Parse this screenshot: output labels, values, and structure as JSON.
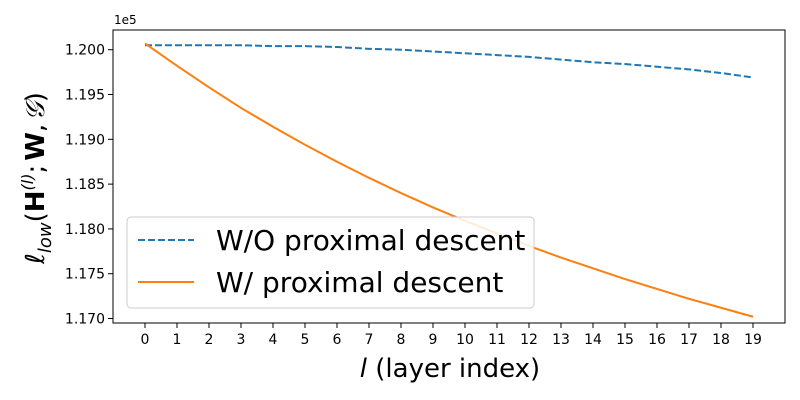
{
  "chart_data": {
    "type": "line",
    "x": [
      0,
      1,
      2,
      3,
      4,
      5,
      6,
      7,
      8,
      9,
      10,
      11,
      12,
      13,
      14,
      15,
      16,
      17,
      18,
      19
    ],
    "x_ticks": [
      "0",
      "1",
      "2",
      "3",
      "4",
      "5",
      "6",
      "7",
      "8",
      "9",
      "10",
      "11",
      "12",
      "13",
      "14",
      "15",
      "16",
      "17",
      "18",
      "19"
    ],
    "y_ticks": [
      "1.170",
      "1.175",
      "1.180",
      "1.185",
      "1.190",
      "1.195",
      "1.200"
    ],
    "y_tick_values": [
      1.17,
      1.175,
      1.18,
      1.185,
      1.19,
      1.195,
      1.2
    ],
    "y_offset_text": "1e5",
    "ylim": [
      1.1695,
      1.2022
    ],
    "xlim": [
      -1.0,
      20.0
    ],
    "xlabel_var": "l",
    "xlabel_rest": " (layer index)",
    "ylabel_parts": {
      "ell": "ℓ",
      "sub": "low",
      "open": "(",
      "H": "H",
      "sup": "(l)",
      "semi": ";",
      "W": "W",
      "comma": ",",
      "G": "𝒢",
      "close": ")"
    },
    "grid": false,
    "legend_position": "lower-left",
    "series": [
      {
        "name": "W/O proximal descent",
        "color": "#1f77b4",
        "style": "dashed",
        "values": [
          1.2005,
          1.2005,
          1.2005,
          1.2005,
          1.2004,
          1.2004,
          1.2003,
          1.2001,
          1.2,
          1.1998,
          1.1996,
          1.1994,
          1.1992,
          1.1989,
          1.1986,
          1.1984,
          1.1981,
          1.1978,
          1.1974,
          1.1969
        ]
      },
      {
        "name": "W/ proximal descent",
        "color": "#ff7f0e",
        "style": "solid",
        "values": [
          1.2007,
          1.1982,
          1.1958,
          1.1935,
          1.1914,
          1.1894,
          1.1875,
          1.1857,
          1.184,
          1.1824,
          1.1809,
          1.1795,
          1.1781,
          1.1768,
          1.1756,
          1.1744,
          1.1733,
          1.1722,
          1.1712,
          1.1702
        ]
      }
    ]
  }
}
